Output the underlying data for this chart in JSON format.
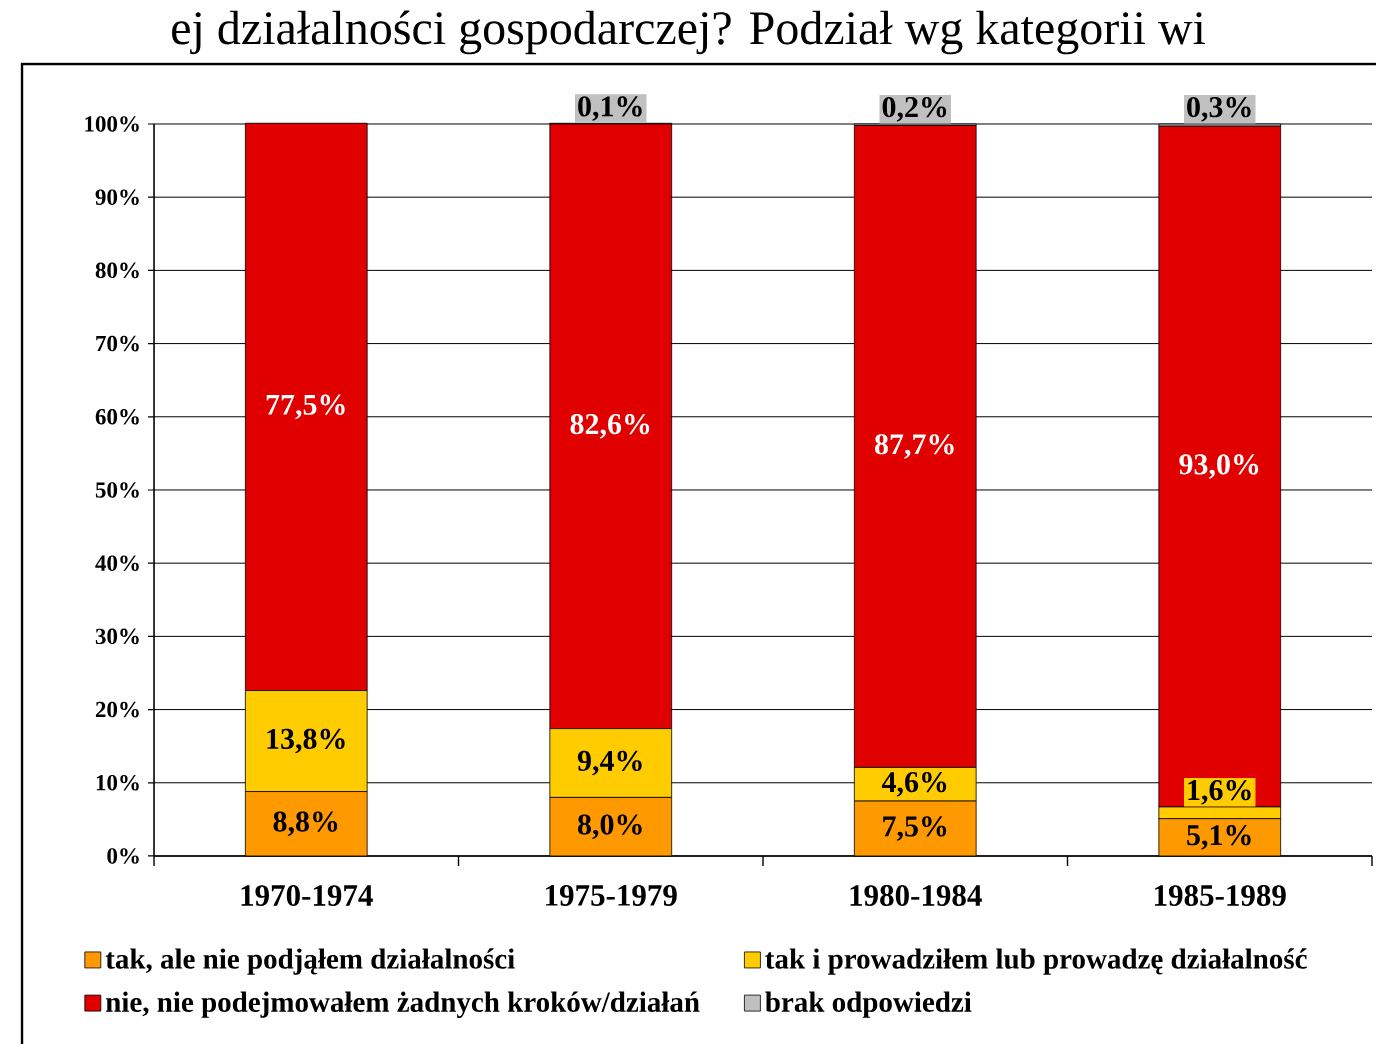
{
  "chart_data": {
    "type": "bar",
    "title": "ej działalności gospodarczej? Podział wg kategorii wi",
    "categories": [
      "1970-1974",
      "1975-1979",
      "1980-1984",
      "1985-1989"
    ],
    "stacked": true,
    "series": [
      {
        "name": "tak, ale nie podjąłem działalności",
        "color": "#ff9900",
        "values": [
          8.8,
          8.0,
          7.5,
          5.1
        ],
        "value_labels": [
          "8,8%",
          "8,0%",
          "7,5%",
          "5,1%"
        ]
      },
      {
        "name": "tak i prowadziłem lub prowadzę działalność",
        "color": "#ffcc00",
        "values": [
          13.8,
          9.4,
          4.6,
          1.6
        ],
        "value_labels": [
          "13,8%",
          "9,4%",
          "4,6%",
          "1,6%"
        ]
      },
      {
        "name": "nie, nie podejmowałem żadnych kroków/działań",
        "color": "#e00000",
        "values": [
          77.5,
          82.6,
          87.7,
          93.0
        ],
        "value_labels": [
          "77,5%",
          "82,6%",
          "87,7%",
          "93,0%"
        ]
      },
      {
        "name": "brak odpowiedzi",
        "color": "#c0c0c0",
        "values": [
          0,
          0.1,
          0.2,
          0.3
        ],
        "value_labels": [
          null,
          "0,1%",
          "0,2%",
          "0,3%"
        ]
      }
    ],
    "ylim": [
      0,
      100
    ],
    "yticks": [
      {
        "value": 0,
        "label": "0%"
      },
      {
        "value": 10,
        "label": "10%"
      },
      {
        "value": 20,
        "label": "20%"
      },
      {
        "value": 30,
        "label": "30%"
      },
      {
        "value": 40,
        "label": "40%"
      },
      {
        "value": 50,
        "label": "50%"
      },
      {
        "value": 60,
        "label": "60%"
      },
      {
        "value": 70,
        "label": "70%"
      },
      {
        "value": 80,
        "label": "80%"
      },
      {
        "value": 90,
        "label": "90%"
      },
      {
        "value": 100,
        "label": "100%"
      }
    ],
    "grid": "y",
    "legend": "bottom"
  }
}
